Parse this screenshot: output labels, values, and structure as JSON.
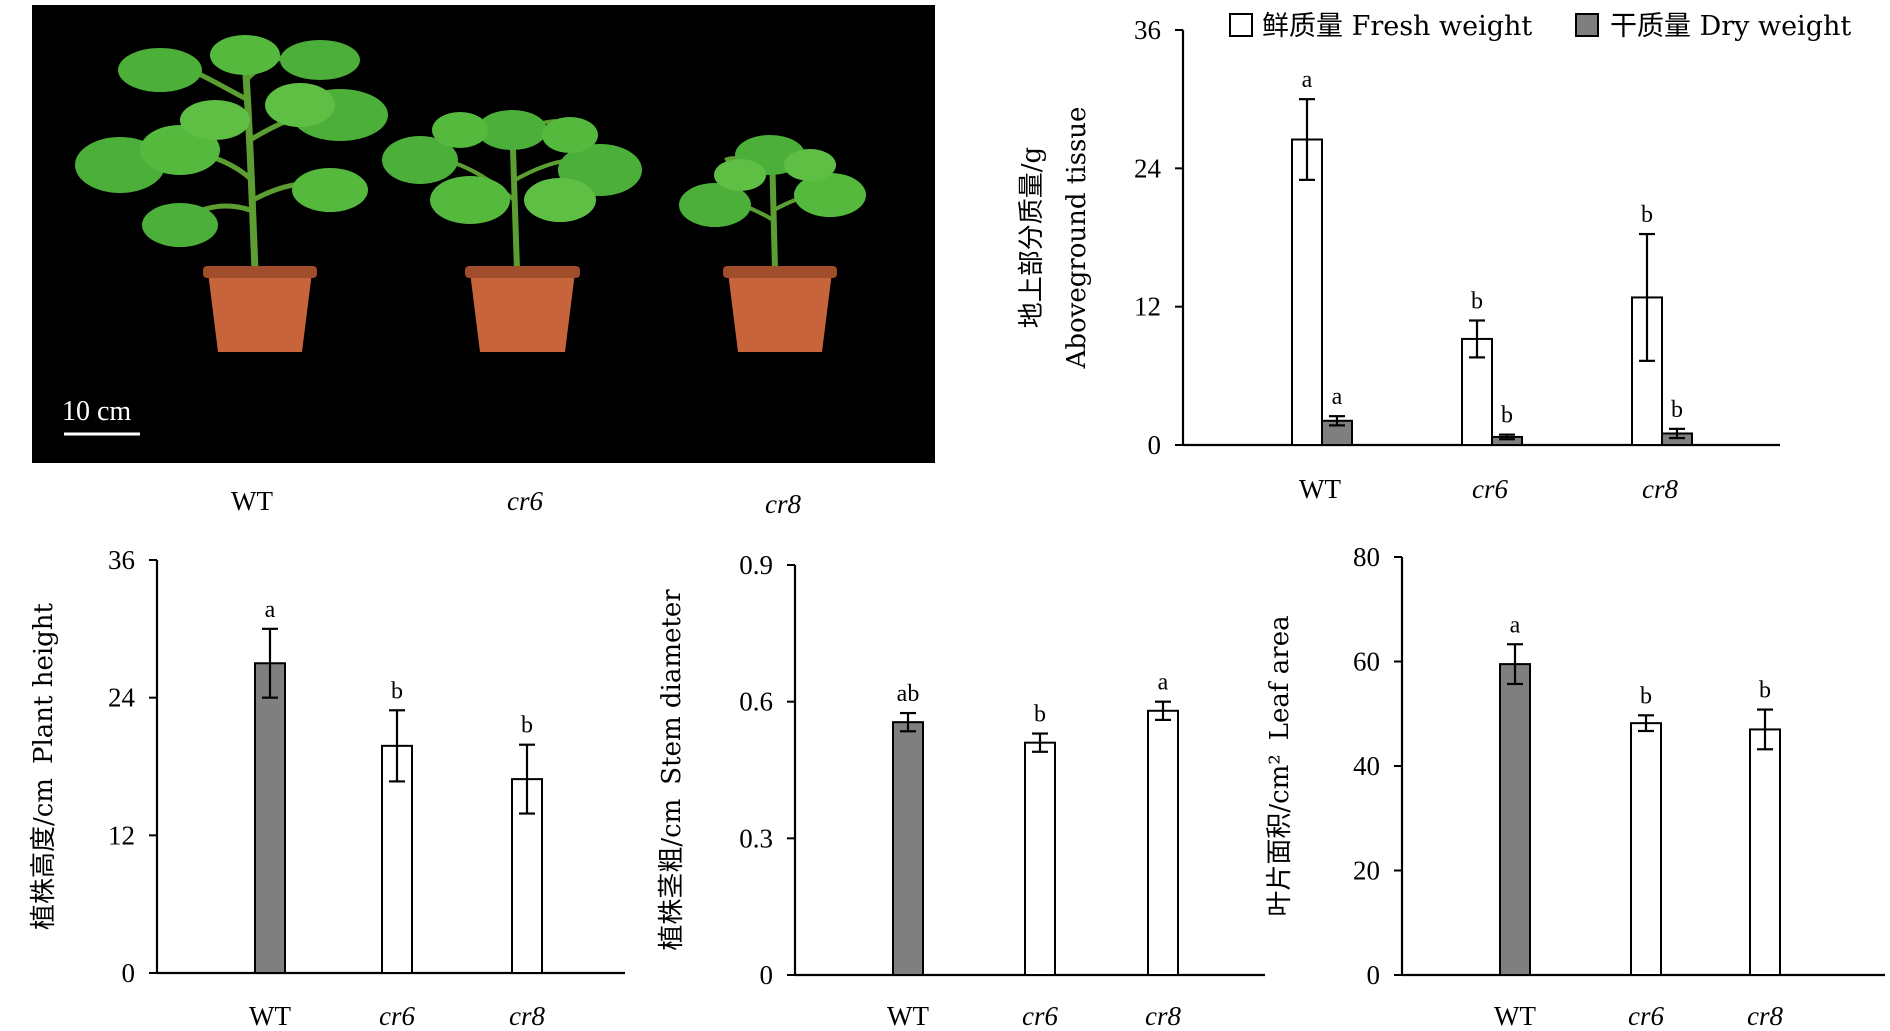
{
  "photo": {
    "scale_label": "10 cm",
    "plant_labels": [
      "WT",
      "cr6",
      "cr8"
    ],
    "plant_label_italic": [
      false,
      true,
      true
    ]
  },
  "colors": {
    "fresh_fill": "#ffffff",
    "dry_fill": "#7f7f7f",
    "photo_background": "#000000",
    "leaf_green": "#4caf3a",
    "pot_orange": "#c8643c"
  },
  "chart_data": [
    {
      "id": "aboveground",
      "type": "bar",
      "categories": [
        "WT",
        "cr6",
        "cr8"
      ],
      "category_italic": [
        false,
        true,
        true
      ],
      "ylabel_cn": "地上部分质量/g",
      "ylabel_en": "Aboveground tissue",
      "ylim": [
        0,
        36
      ],
      "yticks": [
        "0",
        "12",
        "24",
        "36"
      ],
      "ytick_values": [
        0,
        12,
        24,
        36
      ],
      "legend": [
        "鲜质量 Fresh weight",
        "干质量  Dry weight"
      ],
      "legend_placement": "top",
      "series": [
        {
          "name": "鲜质量 Fresh weight",
          "fill": "#ffffff",
          "values": [
            26.5,
            9.2,
            12.8
          ],
          "errors": [
            3.5,
            1.6,
            5.5
          ],
          "sig": [
            "a",
            "b",
            "b"
          ]
        },
        {
          "name": "干质量  Dry weight",
          "fill": "#7f7f7f",
          "values": [
            2.1,
            0.7,
            1.0
          ],
          "errors": [
            0.4,
            0.2,
            0.4
          ],
          "sig": [
            "a",
            "b",
            "b"
          ]
        }
      ]
    },
    {
      "id": "height",
      "type": "bar",
      "categories": [
        "WT",
        "cr6",
        "cr8"
      ],
      "category_italic": [
        false,
        true,
        true
      ],
      "ylabel_cn": "植株高度/cm",
      "ylabel_en": "Plant height",
      "ylim": [
        0,
        36
      ],
      "yticks": [
        "0",
        "12",
        "24",
        "36"
      ],
      "ytick_values": [
        0,
        12,
        24,
        36
      ],
      "series": [
        {
          "fills": [
            "#7f7f7f",
            "#ffffff",
            "#ffffff"
          ],
          "values": [
            27.0,
            19.8,
            16.9
          ],
          "errors": [
            3.0,
            3.1,
            3.0
          ],
          "sig": [
            "a",
            "b",
            "b"
          ]
        }
      ]
    },
    {
      "id": "stem",
      "type": "bar",
      "categories": [
        "WT",
        "cr6",
        "cr8"
      ],
      "category_italic": [
        false,
        true,
        true
      ],
      "ylabel_cn": "植株茎粗/cm",
      "ylabel_en": "Stem diameter",
      "ylim": [
        0,
        0.9
      ],
      "yticks": [
        "0",
        "0.3",
        "0.6",
        "0.9"
      ],
      "ytick_values": [
        0,
        0.3,
        0.6,
        0.9
      ],
      "series": [
        {
          "fills": [
            "#7f7f7f",
            "#ffffff",
            "#ffffff"
          ],
          "values": [
            0.555,
            0.51,
            0.58
          ],
          "errors": [
            0.02,
            0.02,
            0.02
          ],
          "sig": [
            "ab",
            "b",
            "a"
          ]
        }
      ]
    },
    {
      "id": "leaf",
      "type": "bar",
      "categories": [
        "WT",
        "cr6",
        "cr8"
      ],
      "category_italic": [
        false,
        true,
        true
      ],
      "ylabel_cn": "叶片面积/cm²",
      "ylabel_en": "Leaf area",
      "ylim": [
        0,
        80
      ],
      "yticks": [
        "0",
        "20",
        "40",
        "60",
        "80"
      ],
      "ytick_values": [
        0,
        20,
        40,
        60,
        80
      ],
      "series": [
        {
          "fills": [
            "#7f7f7f",
            "#ffffff",
            "#ffffff"
          ],
          "values": [
            59.5,
            48.2,
            47.0
          ],
          "errors": [
            3.8,
            1.5,
            3.8
          ],
          "sig": [
            "a",
            "b",
            "b"
          ]
        }
      ]
    }
  ]
}
